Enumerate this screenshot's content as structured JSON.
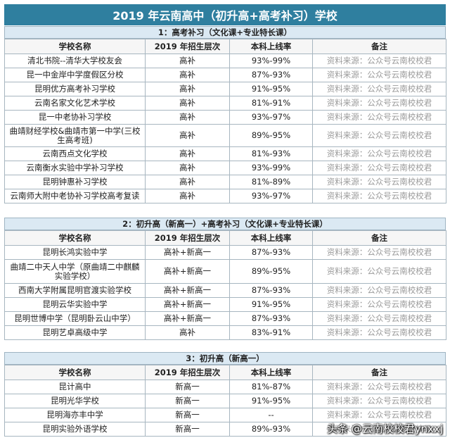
{
  "title": "2019 年云南高中（初升高+高考补习）学校",
  "headers": [
    "学校名称",
    "2019 年招生层次",
    "本科上线率",
    "备注"
  ],
  "sections": [
    {
      "heading": "1：高考补习（文化课+专业特长课）",
      "rows": [
        [
          "清北书院--清华大学校友会",
          "高补",
          "93%-99%",
          "资料来源：公众号云南校校君"
        ],
        [
          "昆一中金岸中学度假区分校",
          "高补",
          "87%-93%",
          "资料来源：公众号云南校校君"
        ],
        [
          "昆明优方高考补习学校",
          "高补",
          "91%-95%",
          "资料来源：公众号云南校校君"
        ],
        [
          "云南名家文化艺术学校",
          "高补",
          "81%-91%",
          "资料来源：公众号云南校校君"
        ],
        [
          "昆一中老协补习学校",
          "高补",
          "93%-97%",
          "资料来源：公众号云南校校君"
        ],
        [
          "曲靖财经学校&曲靖市第一中学(三校生高考班)",
          "高补",
          "89%-95%",
          "资料来源：公众号云南校校君"
        ],
        [
          "云南西点文化学校",
          "高补",
          "81%-93%",
          "资料来源：公众号云南校校君"
        ],
        [
          "云南衡水实验中学补习学校",
          "高补",
          "93%-99%",
          "资料来源：公众号云南校校君"
        ],
        [
          "昆明钟惠补习学校",
          "高补",
          "81%-89%",
          "资料来源：公众号云南校校君"
        ],
        [
          "云南师大附中老协补习学校高考复读",
          "高补",
          "93%-97%",
          "资料来源：公众号云南校校君"
        ]
      ]
    },
    {
      "heading": "2：初升高（新高一）+高考补习（文化课+专业特长课）",
      "rows": [
        [
          "昆明长鸿实验中学",
          "高补+新高一",
          "87%-93%",
          "资料来源：公众号云南校校君"
        ],
        [
          "曲靖二中天人中学（原曲靖二中麒麟实验学校）",
          "高补+新高一",
          "89%-95%",
          "资料来源：公众号云南校校君"
        ],
        [
          "西南大学附属昆明官渡实验学校",
          "高补+新高一",
          "87%-93%",
          "资料来源：公众号云南校校君"
        ],
        [
          "昆明云华实验中学",
          "高补+新高一",
          "91%-95%",
          "资料来源：公众号云南校校君"
        ],
        [
          "昆明世博中学（昆明卧云山中学）",
          "高补+新高一",
          "87%-93%",
          "资料来源：公众号云南校校君"
        ],
        [
          "昆明艺卓高级中学",
          "高补",
          "83%-91%",
          "资料来源：公众号云南校校君"
        ]
      ]
    },
    {
      "heading": "3：初升高（新高一）",
      "rows": [
        [
          "昆计高中",
          "新高一",
          "81%-87%",
          "资料来源：公众号云南校校君"
        ],
        [
          "昆明光华学校",
          "新高一",
          "91%-95%",
          "资料来源：公众号云南校校君"
        ],
        [
          "昆明海亦丰中学",
          "新高一",
          "--",
          "资料来源：公众号云南校校君"
        ],
        [
          "昆明实验外语学校",
          "新高一",
          "89%-93%",
          "资料来源：公众号云南校校君"
        ]
      ]
    }
  ],
  "watermark": "头条 @云南校校君ynxxj"
}
